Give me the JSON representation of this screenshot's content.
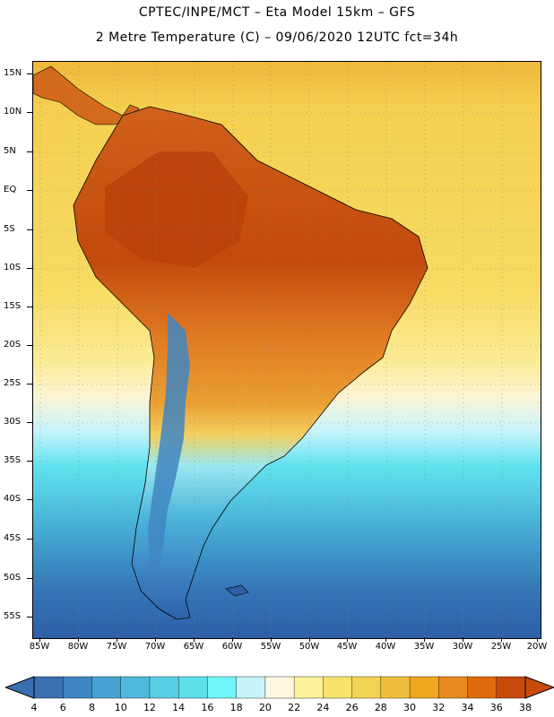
{
  "header": {
    "title_line1": "CPTEC/INPE/MCT –  Eta Model 15km – GFS",
    "title_line2": "2 Metre Temperature (C) – 09/06/2020 12UTC fct=34h"
  },
  "map": {
    "lat_labels": [
      "15N",
      "10N",
      "5N",
      "EQ",
      "5S",
      "10S",
      "15S",
      "20S",
      "25S",
      "30S",
      "35S",
      "40S",
      "45S",
      "50S",
      "55S"
    ],
    "lon_labels": [
      "85W",
      "80W",
      "75W",
      "70W",
      "65W",
      "60W",
      "55W",
      "50W",
      "45W",
      "40W",
      "35W",
      "30W",
      "25W",
      "20W"
    ]
  },
  "colorbar": {
    "labels": [
      "4",
      "6",
      "8",
      "10",
      "12",
      "14",
      "16",
      "18",
      "20",
      "22",
      "24",
      "26",
      "28",
      "30",
      "32",
      "34",
      "36",
      "38"
    ],
    "colors": [
      "#3a6fb0",
      "#3f86c2",
      "#46a2d2",
      "#4fb9dc",
      "#58cde4",
      "#5ee0ec",
      "#6ff5fa",
      "#c8f3fb",
      "#fff7e0",
      "#fdf29a",
      "#f7e36b",
      "#f3d354",
      "#efbf3c",
      "#f0a61e",
      "#e88a1e",
      "#e06a10",
      "#c84a0a"
    ]
  },
  "colors": {
    "ocean_warm": "#f5cf4f",
    "ocean_cool": "#2f5fa5",
    "land_hot": "#c85412",
    "land_warm": "#e0862a",
    "andes_cold": "#3a78b8"
  }
}
